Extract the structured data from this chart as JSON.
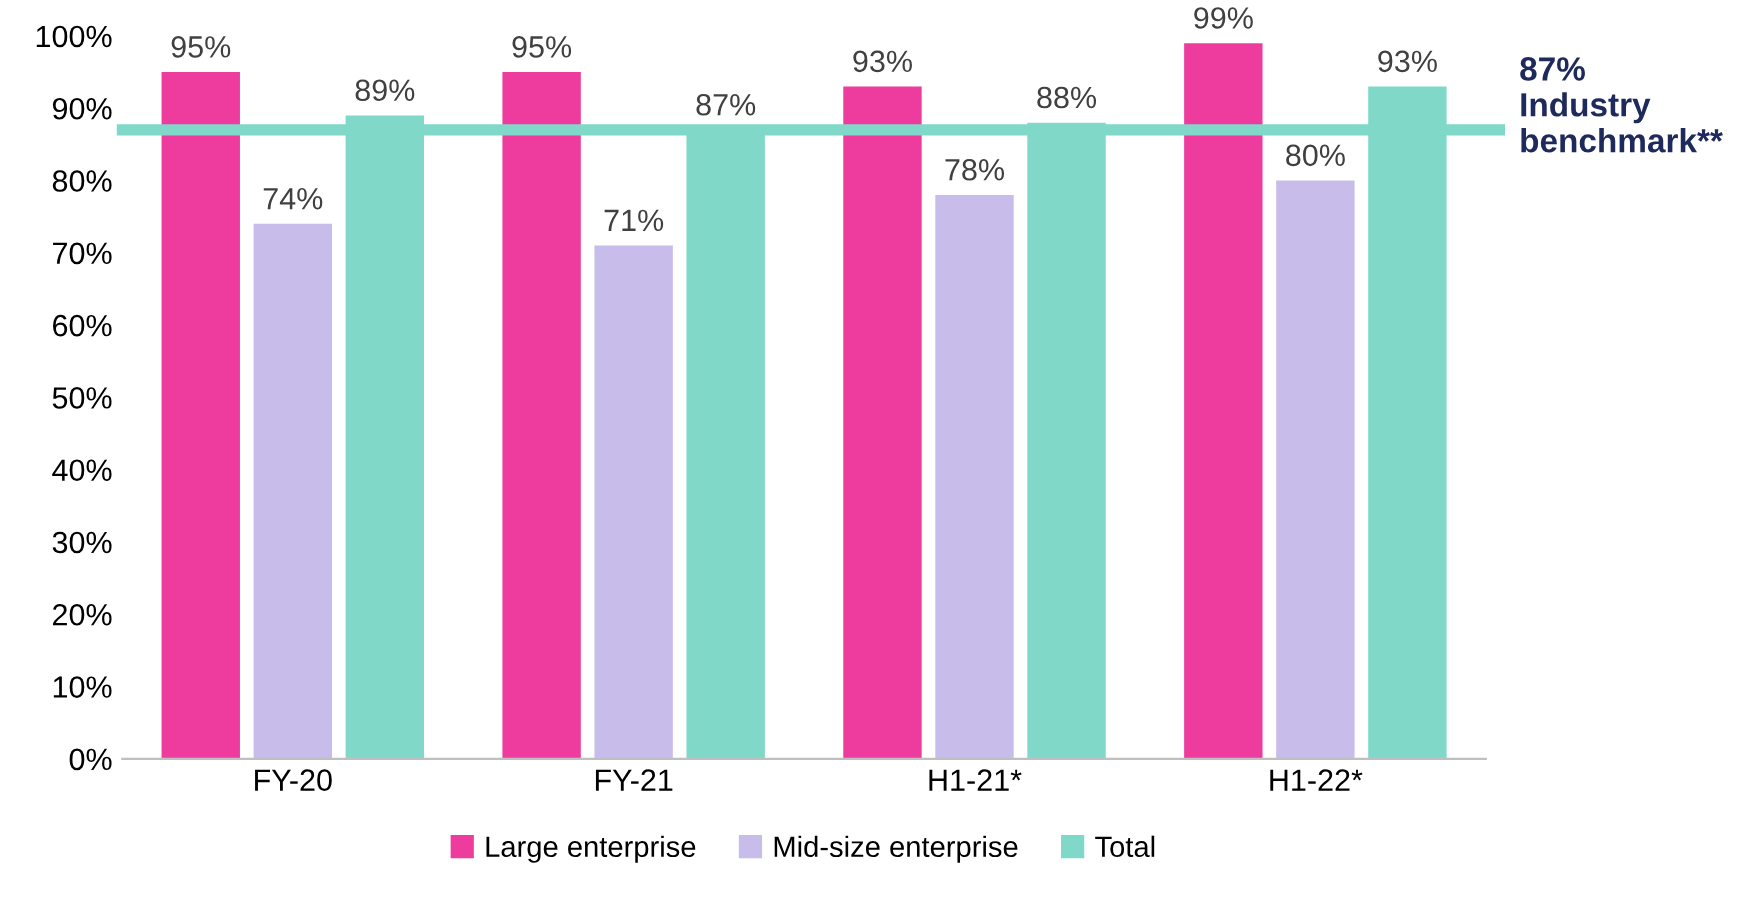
{
  "chart_data": {
    "type": "bar",
    "categories": [
      "FY-20",
      "FY-21",
      "H1-21*",
      "H1-22*"
    ],
    "series": [
      {
        "name": "Large enterprise",
        "color": "#ee3b9e",
        "values": [
          95,
          95,
          93,
          99
        ],
        "value_labels": [
          "95%",
          "95%",
          "93%",
          "99%"
        ]
      },
      {
        "name": "Mid-size enterprise",
        "color": "#c8bceb",
        "values": [
          74,
          71,
          78,
          80
        ],
        "value_labels": [
          "74%",
          "71%",
          "78%",
          "80%"
        ]
      },
      {
        "name": "Total",
        "color": "#7fd8c8",
        "values": [
          89,
          87,
          88,
          93
        ],
        "value_labels": [
          "89%",
          "87%",
          "88%",
          "93%"
        ]
      }
    ],
    "ylim": [
      0,
      100
    ],
    "yticks": [
      {
        "value": 0,
        "label": "0%"
      },
      {
        "value": 10,
        "label": "10%"
      },
      {
        "value": 20,
        "label": "20%"
      },
      {
        "value": 30,
        "label": "30%"
      },
      {
        "value": 40,
        "label": "40%"
      },
      {
        "value": 50,
        "label": "50%"
      },
      {
        "value": 60,
        "label": "60%"
      },
      {
        "value": 70,
        "label": "70%"
      },
      {
        "value": 80,
        "label": "80%"
      },
      {
        "value": 90,
        "label": "90%"
      },
      {
        "value": 100,
        "label": "100%"
      }
    ],
    "ref_lines": [
      {
        "axis": "y",
        "value": 87,
        "label": "87%\nIndustry\nbenchmark**",
        "color": "#7fd8c8",
        "line_style": "solid"
      }
    ],
    "grid": false,
    "legend": "bottom"
  }
}
